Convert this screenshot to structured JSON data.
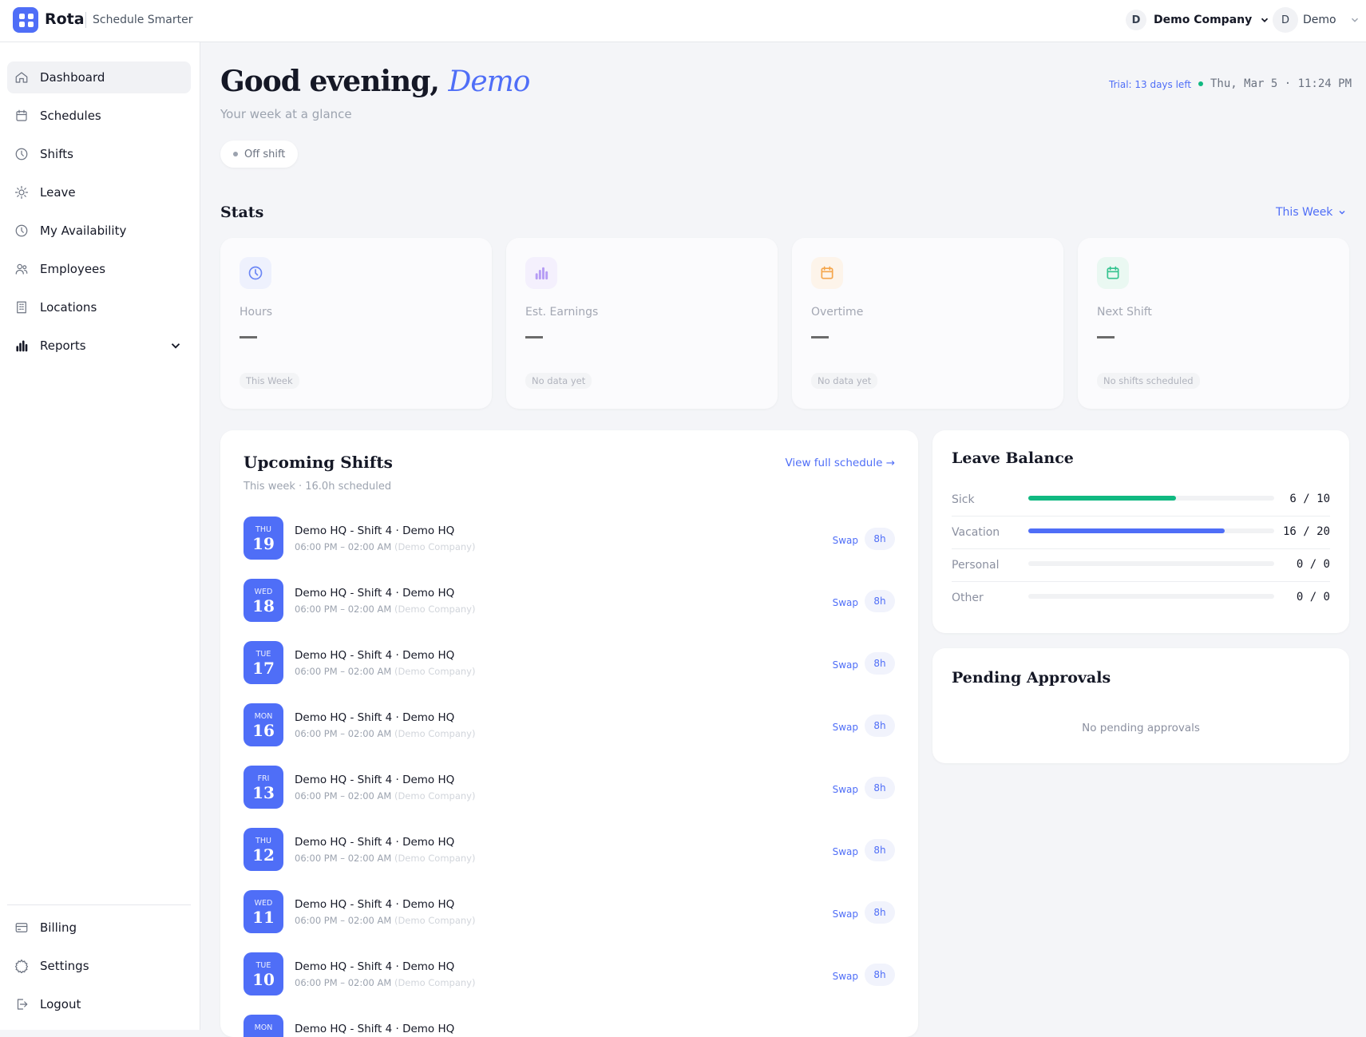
{
  "header": {
    "brand": "Rota",
    "tagline": "Schedule Smarter",
    "company_initial": "D",
    "company": "Demo Company",
    "user_initial": "D",
    "user": "Demo"
  },
  "sidebar": {
    "items": [
      {
        "label": "Dashboard",
        "icon": "home-icon",
        "active": true
      },
      {
        "label": "Schedules",
        "icon": "calendar-icon"
      },
      {
        "label": "Shifts",
        "icon": "clock-icon"
      },
      {
        "label": "Leave",
        "icon": "sun-icon"
      },
      {
        "label": "My Availability",
        "icon": "clock-icon"
      },
      {
        "label": "Employees",
        "icon": "users-icon"
      },
      {
        "label": "Locations",
        "icon": "building-icon"
      },
      {
        "label": "Reports",
        "icon": "bar-chart-icon"
      }
    ],
    "bottom": [
      {
        "label": "Billing",
        "icon": "credit-card-icon"
      },
      {
        "label": "Settings",
        "icon": "gear-icon"
      },
      {
        "label": "Logout",
        "icon": "logout-icon"
      }
    ]
  },
  "greeting": {
    "prefix": "Good evening,",
    "name": "Demo",
    "subtitle": "Your week at a glance",
    "status": "Off shift",
    "trial": "Trial: 13 days left",
    "datetime": "Thu, Mar 5 · 11:24 PM"
  },
  "stats": {
    "title": "Stats",
    "range": "This Week",
    "cards": [
      {
        "label": "Hours",
        "value": "—",
        "chip": "This Week",
        "icon": "clock-icon",
        "color": "#6b86f5",
        "bg": "#eef1fd"
      },
      {
        "label": "Est. Earnings",
        "value": "—",
        "chip": "No data yet",
        "icon": "bar-chart-icon",
        "color": "#b69cf5",
        "bg": "#f4f0fd"
      },
      {
        "label": "Overtime",
        "value": "—",
        "chip": "No data yet",
        "icon": "calendar-icon",
        "color": "#f5a54a",
        "bg": "#fdf4ea"
      },
      {
        "label": "Next Shift",
        "value": "—",
        "chip": "No shifts scheduled",
        "icon": "calendar-icon",
        "color": "#34c38f",
        "bg": "#eaf8f2"
      }
    ]
  },
  "upcoming": {
    "title": "Upcoming Shifts",
    "subtitle": "This week · 16.0h scheduled",
    "link": "View full schedule →",
    "swap": "Swap",
    "shifts": [
      {
        "dow": "THU",
        "day": "19",
        "title": "Demo HQ - Shift 4 · Demo HQ",
        "time": "06:00 PM – 02:00 AM",
        "company": "(Demo Company)",
        "hours": "8h"
      },
      {
        "dow": "WED",
        "day": "18",
        "title": "Demo HQ - Shift 4 · Demo HQ",
        "time": "06:00 PM – 02:00 AM",
        "company": "(Demo Company)",
        "hours": "8h"
      },
      {
        "dow": "TUE",
        "day": "17",
        "title": "Demo HQ - Shift 4 · Demo HQ",
        "time": "06:00 PM – 02:00 AM",
        "company": "(Demo Company)",
        "hours": "8h"
      },
      {
        "dow": "MON",
        "day": "16",
        "title": "Demo HQ - Shift 4 · Demo HQ",
        "time": "06:00 PM – 02:00 AM",
        "company": "(Demo Company)",
        "hours": "8h"
      },
      {
        "dow": "FRI",
        "day": "13",
        "title": "Demo HQ - Shift 4 · Demo HQ",
        "time": "06:00 PM – 02:00 AM",
        "company": "(Demo Company)",
        "hours": "8h"
      },
      {
        "dow": "THU",
        "day": "12",
        "title": "Demo HQ - Shift 4 · Demo HQ",
        "time": "06:00 PM – 02:00 AM",
        "company": "(Demo Company)",
        "hours": "8h"
      },
      {
        "dow": "WED",
        "day": "11",
        "title": "Demo HQ - Shift 4 · Demo HQ",
        "time": "06:00 PM – 02:00 AM",
        "company": "(Demo Company)",
        "hours": "8h"
      },
      {
        "dow": "TUE",
        "day": "10",
        "title": "Demo HQ - Shift 4 · Demo HQ",
        "time": "06:00 PM – 02:00 AM",
        "company": "(Demo Company)",
        "hours": "8h"
      },
      {
        "dow": "MON",
        "day": "",
        "title": "Demo HQ - Shift 4 · Demo HQ",
        "time": "",
        "company": "",
        "hours": ""
      }
    ]
  },
  "leave": {
    "title": "Leave Balance",
    "items": [
      {
        "label": "Sick",
        "used": 6,
        "total": 10,
        "text": "6 / 10",
        "color": "#10b981"
      },
      {
        "label": "Vacation",
        "used": 16,
        "total": 20,
        "text": "16 / 20",
        "color": "#4f6ef7"
      },
      {
        "label": "Personal",
        "used": 0,
        "total": 0,
        "text": "0 / 0",
        "color": "#4f6ef7"
      },
      {
        "label": "Other",
        "used": 0,
        "total": 0,
        "text": "0 / 0",
        "color": "#4f6ef7"
      }
    ]
  },
  "approvals": {
    "title": "Pending Approvals",
    "empty": "No pending approvals"
  }
}
